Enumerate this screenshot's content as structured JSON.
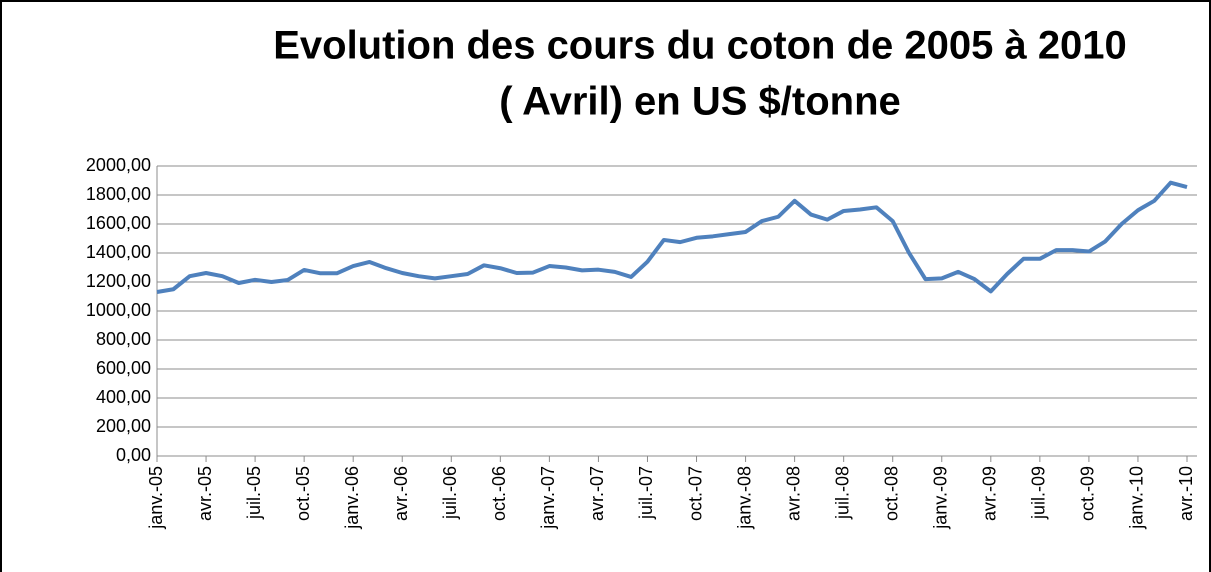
{
  "chart_data": {
    "type": "line",
    "title": [
      "Evolution des cours du coton de 2005 à 2010",
      "( Avril) en US $/tonne"
    ],
    "categories": [
      "janv.-05",
      null,
      null,
      "avr.-05",
      null,
      null,
      "juil.-05",
      null,
      null,
      "oct.-05",
      null,
      null,
      "janv.-06",
      null,
      null,
      "avr.-06",
      null,
      null,
      "juil.-06",
      null,
      null,
      "oct.-06",
      null,
      null,
      "janv.-07",
      null,
      null,
      "avr.-07",
      null,
      null,
      "juil.-07",
      null,
      null,
      "oct.-07",
      null,
      null,
      "janv.-08",
      null,
      null,
      "avr.-08",
      null,
      null,
      "juil.-08",
      null,
      null,
      "oct.-08",
      null,
      null,
      "janv.-09",
      null,
      null,
      "avr.-09",
      null,
      null,
      "juil.-09",
      null,
      null,
      "oct.-09",
      null,
      null,
      "janv.-10",
      null,
      null,
      "avr.-10"
    ],
    "series": [
      {
        "name": null,
        "color": "#4f81bd",
        "values": [
          1131,
          1150,
          1240,
          1262,
          1240,
          1193,
          1215,
          1200,
          1214,
          1283,
          1260,
          1260,
          1310,
          1338,
          1296,
          1262,
          1240,
          1225,
          1240,
          1255,
          1315,
          1295,
          1262,
          1265,
          1310,
          1300,
          1280,
          1285,
          1270,
          1235,
          1340,
          1490,
          1475,
          1505,
          1515,
          1530,
          1545,
          1620,
          1650,
          1760,
          1665,
          1630,
          1690,
          1700,
          1715,
          1620,
          1400,
          1220,
          1225,
          1270,
          1220,
          1135,
          1255,
          1360,
          1360,
          1420,
          1420,
          1410,
          1480,
          1600,
          1695,
          1760,
          1885,
          1855
        ]
      }
    ],
    "ylim": [
      0,
      2000
    ],
    "yticks": [
      {
        "value": 0,
        "label": "0,00"
      },
      {
        "value": 200,
        "label": "200,00"
      },
      {
        "value": 400,
        "label": "400,00"
      },
      {
        "value": 600,
        "label": "600,00"
      },
      {
        "value": 800,
        "label": "800,00"
      },
      {
        "value": 1000,
        "label": "1000,00"
      },
      {
        "value": 1200,
        "label": "1200,00"
      },
      {
        "value": 1400,
        "label": "1400,00"
      },
      {
        "value": 1600,
        "label": "1600,00"
      },
      {
        "value": 1800,
        "label": "1800,00"
      },
      {
        "value": 2000,
        "label": "2000,00"
      }
    ],
    "grid": true
  }
}
